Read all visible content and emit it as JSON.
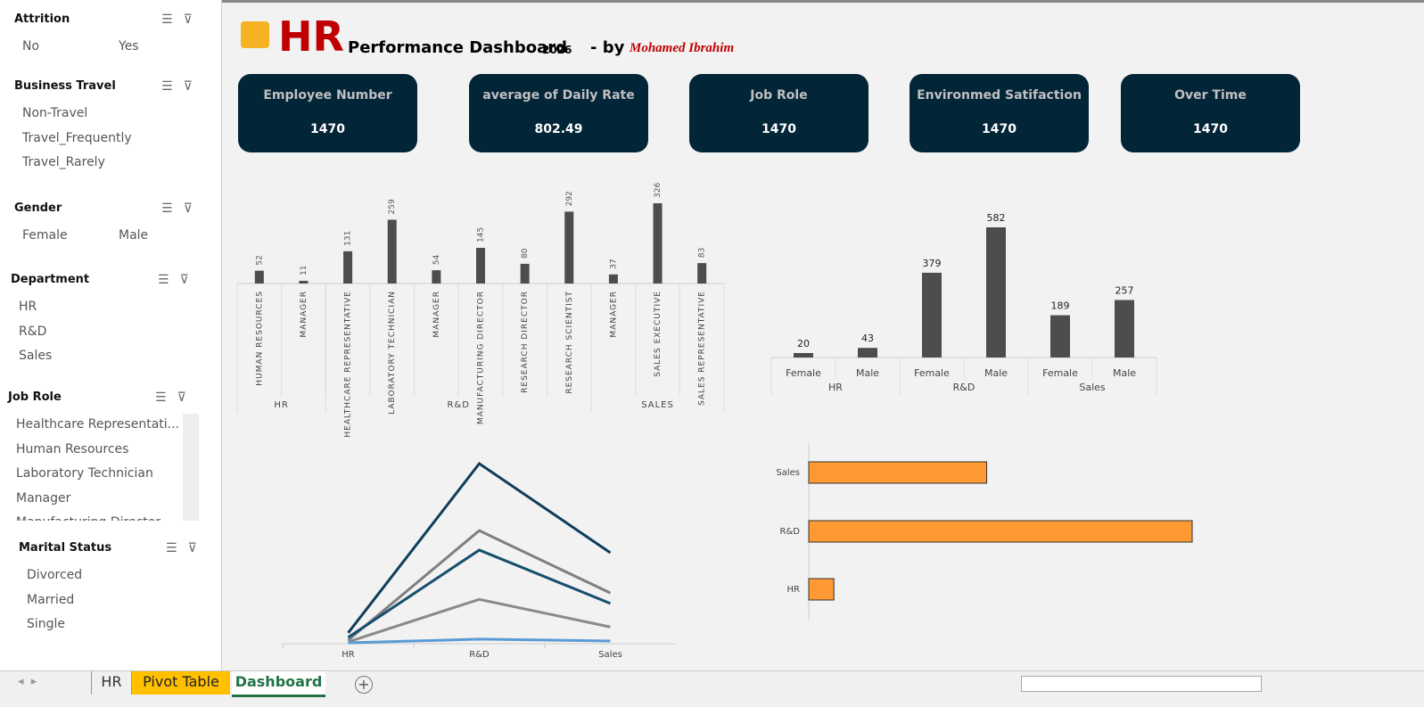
{
  "header": {
    "title": "HR",
    "subtitle": "Performance Dashboard",
    "year": "2026",
    "by": "- by",
    "author": "Mohamed Ibrahim"
  },
  "slicers": [
    {
      "title": "Attrition",
      "items": [
        "No",
        "Yes"
      ]
    },
    {
      "title": "Business Travel",
      "items": [
        "Non-Travel",
        "Travel_Frequently",
        "Travel_Rarely"
      ]
    },
    {
      "title": "Gender",
      "items": [
        "Female",
        "Male"
      ]
    },
    {
      "title": "Department",
      "items": [
        "HR",
        "R&D",
        "Sales"
      ]
    },
    {
      "title": "Job Role",
      "items": [
        "Healthcare Representati...",
        "Human Resources",
        "Laboratory Technician",
        "Manager",
        "Manufacturing Director"
      ]
    },
    {
      "title": "Marital Status",
      "items": [
        "Divorced",
        "Married",
        "Single"
      ]
    }
  ],
  "kpis": [
    {
      "label": "Employee Number",
      "value": 1470
    },
    {
      "label": "average of Daily Rate",
      "value": 802.49
    },
    {
      "label": "Job Role",
      "value": 1470
    },
    {
      "label": "Environmed Satifaction",
      "value": 1470
    },
    {
      "label": "Over Time",
      "value": 1470
    }
  ],
  "chart_data": [
    {
      "type": "bar",
      "color": "#4d4d4d",
      "groups": [
        {
          "name": "HR",
          "categories": [
            "HUMAN RESOURCES",
            "MANAGER"
          ],
          "values": [
            52,
            11
          ]
        },
        {
          "name": "R&D",
          "categories": [
            "HEALTHCARE REPRESENTATIVE",
            "LABORATORY TECHNICIAN",
            "MANAGER",
            "MANUFACTURING DIRECTOR",
            "RESEARCH DIRECTOR",
            "RESEARCH SCIENTIST"
          ],
          "values": [
            131,
            259,
            54,
            145,
            80,
            292
          ]
        },
        {
          "name": "SALES",
          "categories": [
            "MANAGER",
            "SALES EXECUTIVE",
            "SALES REPRESENTATIVE"
          ],
          "values": [
            37,
            326,
            83
          ]
        }
      ]
    },
    {
      "type": "bar",
      "color": "#4d4d4d",
      "groups": [
        {
          "name": "HR",
          "categories": [
            "Female",
            "Male"
          ],
          "values": [
            20,
            43
          ]
        },
        {
          "name": "R&D",
          "categories": [
            "Female",
            "Male"
          ],
          "values": [
            379,
            582
          ]
        },
        {
          "name": "Sales",
          "categories": [
            "Female",
            "Male"
          ],
          "values": [
            189,
            257
          ]
        }
      ]
    },
    {
      "type": "line",
      "categories": [
        "HR",
        "R&D",
        "Sales"
      ],
      "series": [
        {
          "color": "#0e3d5a",
          "values": [
            24,
            398,
            201
          ]
        },
        {
          "color": "#7f7f7f",
          "values": [
            8,
            250,
            112
          ]
        },
        {
          "color": "#164e6e",
          "values": [
            14,
            207,
            89
          ]
        },
        {
          "color": "#8a8a8a",
          "values": [
            4,
            98,
            37
          ]
        },
        {
          "color": "#5b9bd5",
          "values": [
            2,
            10,
            6
          ]
        }
      ]
    },
    {
      "type": "hbar",
      "color": "#ff9933",
      "categories": [
        "Sales",
        "R&D",
        "HR"
      ],
      "values": [
        446,
        961,
        63
      ]
    }
  ],
  "tabs": [
    "HR",
    "Pivot Table",
    "Dashboard"
  ]
}
